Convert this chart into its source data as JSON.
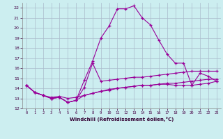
{
  "xlabel": "Windchill (Refroidissement éolien,°C)",
  "bg_color": "#cceef0",
  "line_color": "#990099",
  "grid_color": "#aabbcc",
  "xlim": [
    -0.5,
    23.5
  ],
  "ylim": [
    12,
    22.5
  ],
  "yticks": [
    12,
    13,
    14,
    15,
    16,
    17,
    18,
    19,
    20,
    21,
    22
  ],
  "xticks": [
    0,
    1,
    2,
    3,
    4,
    5,
    6,
    7,
    8,
    9,
    10,
    11,
    12,
    13,
    14,
    15,
    16,
    17,
    18,
    19,
    20,
    21,
    22,
    23
  ],
  "line1_x": [
    0,
    1,
    2,
    3,
    4,
    5,
    6,
    7,
    8,
    9,
    10,
    11,
    12,
    13,
    14,
    15,
    16,
    17,
    18,
    19,
    20,
    21,
    22,
    23
  ],
  "line1_y": [
    14.3,
    13.6,
    13.3,
    13.0,
    13.1,
    12.6,
    12.8,
    14.8,
    16.7,
    19.0,
    20.2,
    21.9,
    21.9,
    22.2,
    21.0,
    20.3,
    18.8,
    17.4,
    16.5,
    16.5,
    14.3,
    15.5,
    15.2,
    14.7
  ],
  "line2_x": [
    0,
    1,
    2,
    3,
    4,
    5,
    6,
    7,
    8,
    9,
    10,
    11,
    12,
    13,
    14,
    15,
    16,
    17,
    18,
    19,
    20,
    21,
    22,
    23
  ],
  "line2_y": [
    14.3,
    13.6,
    13.3,
    13.0,
    13.1,
    12.6,
    12.8,
    14.1,
    16.5,
    14.7,
    14.8,
    14.9,
    15.0,
    15.1,
    15.1,
    15.2,
    15.3,
    15.4,
    15.5,
    15.6,
    15.7,
    15.7,
    15.7,
    15.7
  ],
  "line3_x": [
    0,
    1,
    2,
    3,
    4,
    5,
    6,
    7,
    8,
    9,
    10,
    11,
    12,
    13,
    14,
    15,
    16,
    17,
    18,
    19,
    20,
    21,
    22,
    23
  ],
  "line3_y": [
    14.3,
    13.6,
    13.3,
    13.1,
    13.2,
    13.0,
    13.1,
    13.3,
    13.5,
    13.7,
    13.8,
    14.0,
    14.1,
    14.2,
    14.3,
    14.3,
    14.4,
    14.4,
    14.3,
    14.3,
    14.3,
    14.4,
    14.5,
    14.7
  ],
  "line4_x": [
    0,
    1,
    2,
    3,
    4,
    5,
    6,
    7,
    8,
    9,
    10,
    11,
    12,
    13,
    14,
    15,
    16,
    17,
    18,
    19,
    20,
    21,
    22,
    23
  ],
  "line4_y": [
    14.3,
    13.6,
    13.3,
    13.0,
    13.1,
    12.6,
    12.8,
    13.3,
    13.5,
    13.7,
    13.9,
    14.0,
    14.1,
    14.2,
    14.3,
    14.3,
    14.4,
    14.5,
    14.5,
    14.6,
    14.7,
    14.8,
    14.9,
    14.9
  ]
}
